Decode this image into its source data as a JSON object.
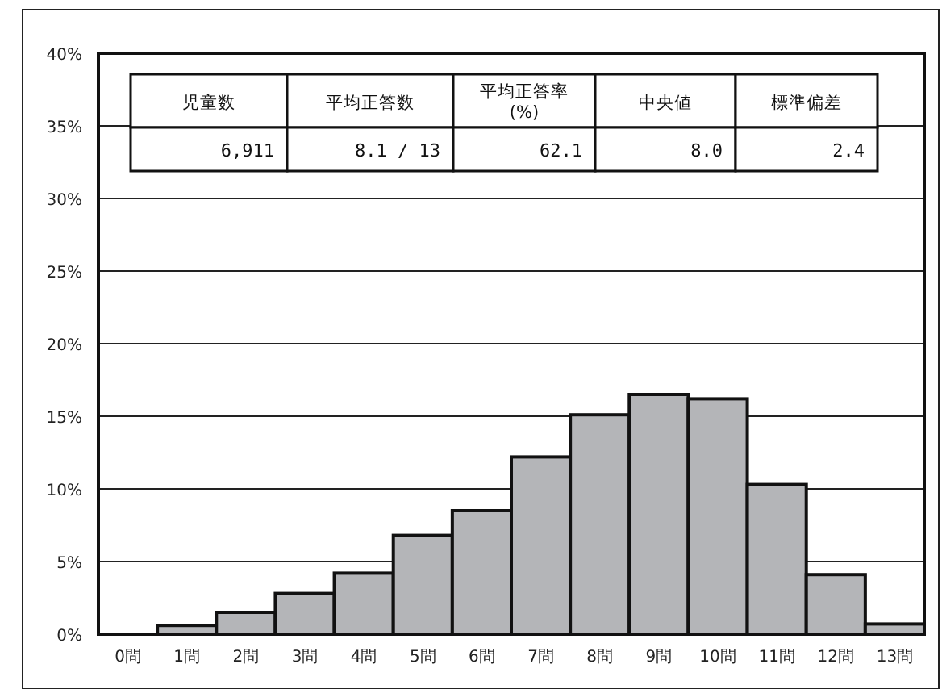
{
  "chart_data": {
    "type": "bar",
    "categories": [
      "0問",
      "1問",
      "2問",
      "3問",
      "4問",
      "5問",
      "6問",
      "7問",
      "8問",
      "9問",
      "10問",
      "11問",
      "12問",
      "13問"
    ],
    "values": [
      null,
      0.6,
      1.5,
      2.8,
      4.2,
      6.8,
      8.5,
      12.2,
      15.1,
      16.5,
      16.2,
      10.3,
      4.1,
      0.7
    ],
    "color": "#b4b5b8",
    "ylim": [
      0,
      40
    ],
    "yticks": [
      {
        "value": 0,
        "label": "0%"
      },
      {
        "value": 5,
        "label": "5%"
      },
      {
        "value": 10,
        "label": "10%"
      },
      {
        "value": 15,
        "label": "15%"
      },
      {
        "value": 20,
        "label": "20%"
      },
      {
        "value": 25,
        "label": "25%"
      },
      {
        "value": 30,
        "label": "30%"
      },
      {
        "value": 35,
        "label": "35%"
      },
      {
        "value": 40,
        "label": "40%"
      }
    ],
    "grid": "y",
    "annotations": [
      "児童数",
      "平均正答数",
      "平均正答率(%)",
      "中央値",
      "標準偏差",
      "6,911",
      "8.1 / 13",
      "62.1",
      "8.0",
      "2.4"
    ]
  }
}
